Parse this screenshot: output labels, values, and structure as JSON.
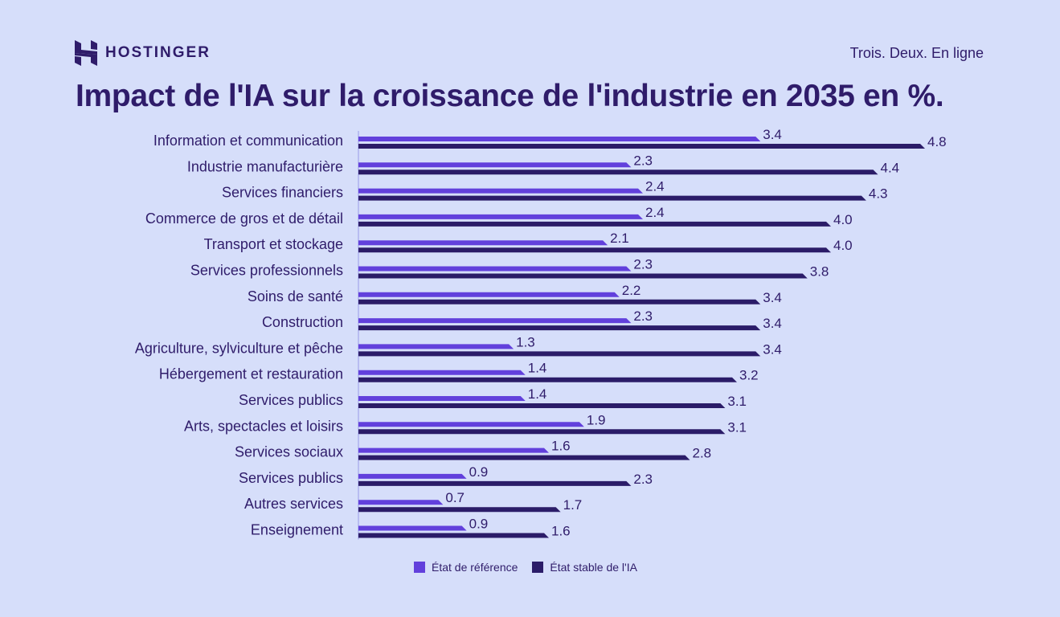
{
  "header": {
    "brand": "HOSTINGER",
    "tagline": "Trois. Deux. En ligne"
  },
  "colors": {
    "reference": "#6240dc",
    "stable": "#2b1c68",
    "background": "#d6defa",
    "text": "#2f1c6a"
  },
  "chart_data": {
    "type": "bar",
    "orientation": "horizontal",
    "title": "Impact de l'IA sur la croissance de l'industrie en 2035 en %.",
    "categories": [
      "Information et communication",
      "Industrie manufacturière",
      "Services financiers",
      "Commerce de gros et de détail",
      "Transport et stockage",
      "Services professionnels",
      "Soins de santé",
      "Construction",
      "Agriculture, sylviculture et pêche",
      "Hébergement et restauration",
      "Services publics",
      "Arts, spectacles et loisirs",
      "Services sociaux",
      "Services publics",
      "Autres services",
      "Enseignement"
    ],
    "series": [
      {
        "name": "État de référence",
        "values": [
          3.4,
          2.3,
          2.4,
          2.4,
          2.1,
          2.3,
          2.2,
          2.3,
          1.3,
          1.4,
          1.4,
          1.9,
          1.6,
          0.9,
          0.7,
          0.9
        ],
        "labels": [
          "3.4",
          "2.3",
          "2.4",
          "2.4",
          "2.1",
          "2.3",
          "2.2",
          "2.3",
          "1.3",
          "1.4",
          "1.4",
          "1.9",
          "1.6",
          "0.9",
          "0.7",
          "0.9"
        ]
      },
      {
        "name": "État stable de l'IA",
        "values": [
          4.8,
          4.4,
          4.3,
          4.0,
          4.0,
          3.8,
          3.4,
          3.4,
          3.4,
          3.2,
          3.1,
          3.1,
          2.8,
          2.3,
          1.7,
          1.6
        ],
        "labels": [
          "4.8",
          "4.4",
          "4.3",
          "4.0",
          "4.0",
          "3.8",
          "3.4",
          "3.4",
          "3.4",
          "3.2",
          "3.1",
          "3.1",
          "2.8",
          "2.3",
          "1.7",
          "1.6"
        ]
      }
    ],
    "xlim": [
      0,
      4.8
    ],
    "grid": false,
    "legend": "bottom"
  }
}
